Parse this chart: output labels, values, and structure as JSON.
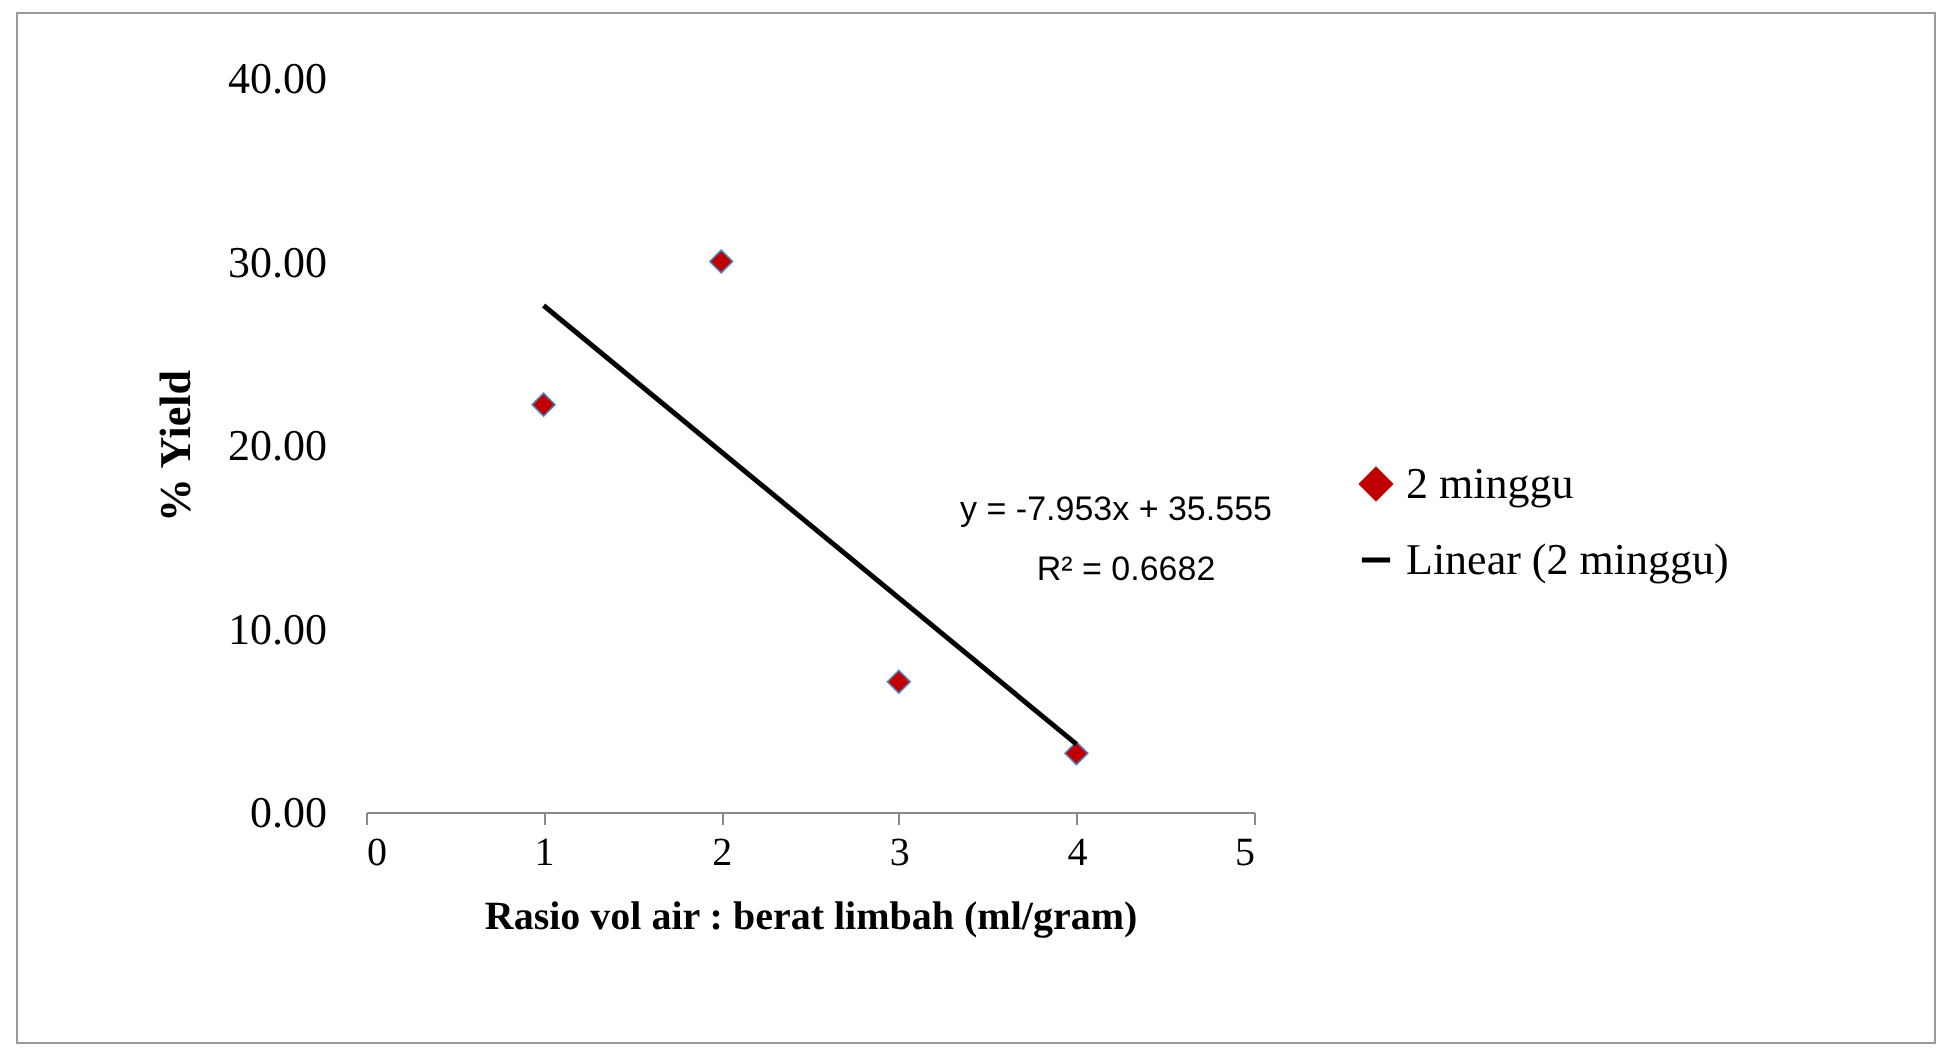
{
  "chart_data": {
    "type": "scatter",
    "xlabel": "Rasio vol air : berat limbah (ml/gram)",
    "ylabel": "% Yield",
    "x": [
      1,
      2,
      3,
      4
    ],
    "series": [
      {
        "name": "2 minggu",
        "color": "#c00000",
        "marker": "diamond",
        "values": [
          22.2,
          30.0,
          7.1,
          3.2
        ]
      },
      {
        "name": "Linear (2 minggu)",
        "type": "line",
        "color": "#000000",
        "marker": "none",
        "x": [
          1,
          4
        ],
        "values": [
          27.6,
          3.7
        ]
      }
    ],
    "xlim": [
      0,
      5
    ],
    "xticks": [
      0,
      1,
      2,
      3,
      4,
      5
    ],
    "ylim": [
      0,
      40
    ],
    "yticks": [
      {
        "value": 0,
        "label": "0.00"
      },
      {
        "value": 10,
        "label": "10.00"
      },
      {
        "value": 20,
        "label": "20.00"
      },
      {
        "value": 30,
        "label": "30.00"
      },
      {
        "value": 40,
        "label": "40.00"
      }
    ],
    "annotations": [
      "y = -7.953x + 35.555",
      "R² = 0.6682"
    ],
    "grid": false,
    "legend": "right"
  }
}
